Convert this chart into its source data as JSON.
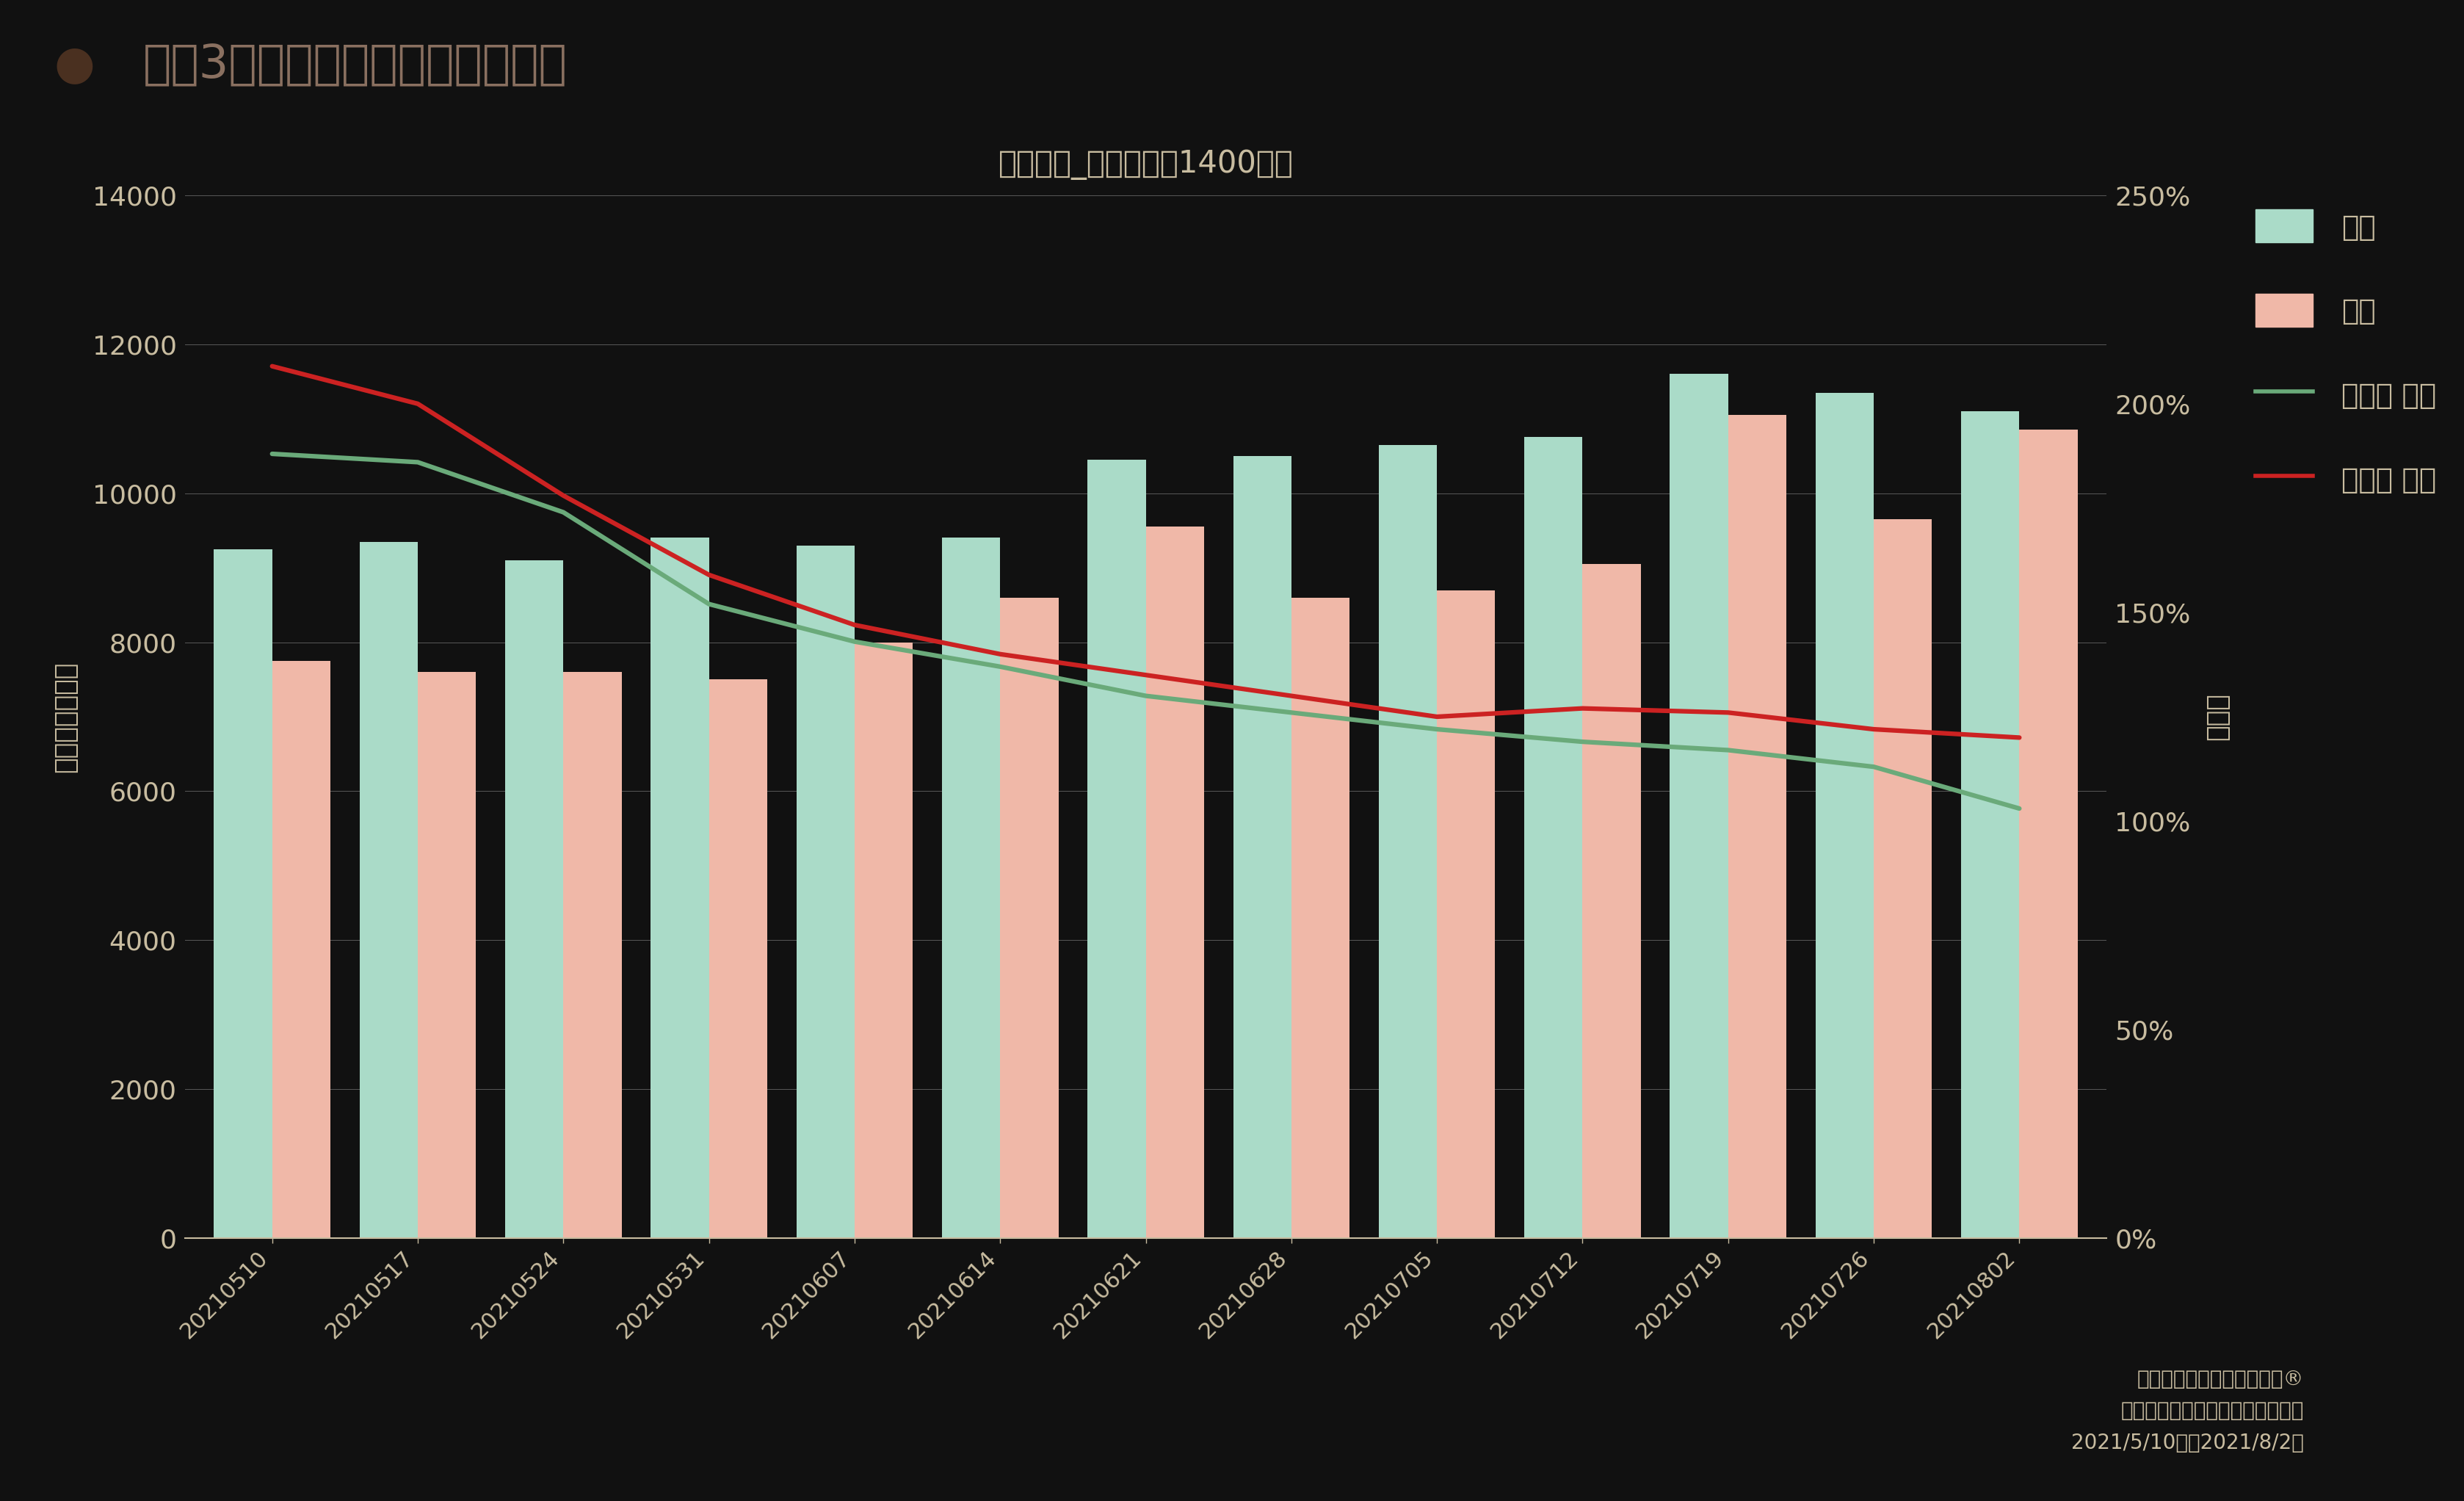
{
  "title": "直近3ヶ月の羽田空港の人口推移",
  "subtitle": "羽田空港_国内線　　1400時台",
  "ylabel_left": "滞在人口（人）",
  "ylabel_right": "前年比",
  "footnote_line1": "データ：モバイル空間統計®",
  "footnote_line2": "国内人口分布（リアルタイム版）",
  "footnote_line3": "2021/5/10週〜2021/8/2週",
  "categories": [
    "20210510",
    "20210517",
    "20210524",
    "20210531",
    "20210607",
    "20210614",
    "20210621",
    "20210628",
    "20210705",
    "20210712",
    "20210719",
    "20210726",
    "20210802"
  ],
  "weekday_bars": [
    9250,
    9350,
    9100,
    9400,
    9300,
    9400,
    10450,
    10500,
    10650,
    10750,
    11600,
    11350,
    11100
  ],
  "holiday_bars": [
    7750,
    7600,
    7600,
    7500,
    8000,
    8600,
    9550,
    8600,
    8700,
    9050,
    11050,
    9650,
    10850
  ],
  "yoy_weekday": [
    1.88,
    1.86,
    1.74,
    1.52,
    1.43,
    1.37,
    1.3,
    1.26,
    1.22,
    1.19,
    1.17,
    1.13,
    1.03
  ],
  "yoy_holiday": [
    2.09,
    2.0,
    1.78,
    1.59,
    1.47,
    1.4,
    1.35,
    1.3,
    1.25,
    1.27,
    1.26,
    1.22,
    1.2
  ],
  "bar_color_weekday": "#aadbc8",
  "bar_color_holiday": "#f0b8a8",
  "line_color_weekday": "#6aaa7a",
  "line_color_holiday": "#cc2222",
  "bg_color": "#111111",
  "text_color": "#c8bca0",
  "grid_color": "#ffffff",
  "title_dot_color": "#4a3020",
  "title_text_color": "#8a7060",
  "ylim_left": [
    0,
    14000
  ],
  "ylim_right": [
    0.0,
    2.5
  ],
  "yticks_left": [
    0,
    2000,
    4000,
    6000,
    8000,
    10000,
    12000,
    14000
  ],
  "yticks_right": [
    0.0,
    0.5,
    1.0,
    1.5,
    2.0,
    2.5
  ],
  "ytick_right_labels": [
    "0%",
    "50%",
    "100%",
    "150%",
    "200%",
    "250%"
  ],
  "legend_labels": [
    "平日",
    "休日",
    "前年比 平日",
    "前年比 休日"
  ],
  "bar_width": 0.4
}
